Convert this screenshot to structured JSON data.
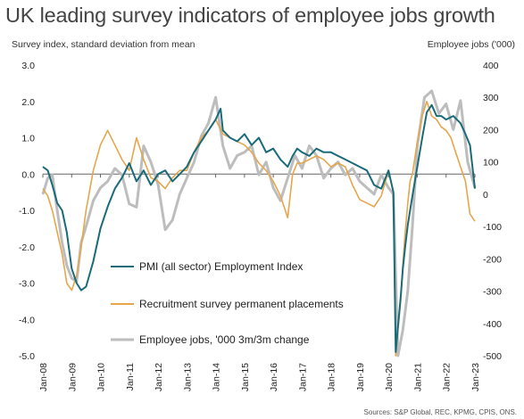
{
  "title": "UK leading survey indicators of employee jobs growth",
  "source": "Sources: S&P Global, REC, KPMG, CPIS, ONS.",
  "colors": {
    "pmi": "#1a6b7a",
    "recruitment": "#e5a64c",
    "jobs": "#bdbdbd",
    "zero_line": "#666666"
  },
  "chart_data": {
    "type": "line",
    "title": "UK leading survey indicators of employee jobs growth",
    "ylabel": "Survey index, standard deviation from mean",
    "ylabel_right": "Employee jobs ('000)",
    "ylim": [
      -5,
      3
    ],
    "ylim_right": [
      -500,
      400
    ],
    "y_ticks": [
      "3.0",
      "2.0",
      "1.0",
      "0.0",
      "-1.0",
      "-2.0",
      "-3.0",
      "-4.0",
      "-5.0"
    ],
    "y_ticks_right": [
      "400",
      "300",
      "200",
      "100",
      "0",
      "-100",
      "-200",
      "-300",
      "-400",
      "-500"
    ],
    "x_ticks": [
      "Jan-08",
      "Jan-09",
      "Jan-10",
      "Jan-11",
      "Jan-12",
      "Jan-13",
      "Jan-14",
      "Jan-15",
      "Jan-16",
      "Jan-17",
      "Jan-18",
      "Jan-19",
      "Jan-20",
      "Jan-21",
      "Jan-22",
      "Jan-23"
    ],
    "xlim": [
      2008.0,
      2023.0
    ],
    "grid": false,
    "legend_position": "bottom-left",
    "series": [
      {
        "name": "PMI (all sector) Employment Index",
        "axis": "left",
        "color": "#1a6b7a",
        "x": [
          2008.0,
          2008.17,
          2008.33,
          2008.5,
          2008.67,
          2008.83,
          2009.0,
          2009.17,
          2009.33,
          2009.5,
          2009.75,
          2010.0,
          2010.25,
          2010.5,
          2010.75,
          2011.0,
          2011.25,
          2011.5,
          2011.75,
          2012.0,
          2012.25,
          2012.5,
          2012.75,
          2013.0,
          2013.25,
          2013.5,
          2013.75,
          2014.0,
          2014.17,
          2014.25,
          2014.5,
          2014.75,
          2015.0,
          2015.25,
          2015.5,
          2015.75,
          2016.0,
          2016.25,
          2016.5,
          2016.67,
          2016.83,
          2017.0,
          2017.25,
          2017.5,
          2017.75,
          2018.0,
          2018.25,
          2018.5,
          2018.75,
          2019.0,
          2019.25,
          2019.5,
          2019.75,
          2020.0,
          2020.17,
          2020.25,
          2020.33,
          2020.42,
          2020.5,
          2020.58,
          2020.67,
          2020.75,
          2020.83,
          2021.0,
          2021.17,
          2021.33,
          2021.5,
          2021.67,
          2021.83,
          2022.0,
          2022.25,
          2022.5,
          2022.67,
          2022.83,
          2023.0
        ],
        "values": [
          0.2,
          0.1,
          -0.3,
          -0.8,
          -1.0,
          -1.6,
          -2.6,
          -3.0,
          -3.2,
          -3.1,
          -2.4,
          -1.5,
          -0.9,
          -0.4,
          -0.1,
          0.3,
          -0.2,
          0.1,
          -0.3,
          0.0,
          0.1,
          -0.2,
          0.0,
          0.2,
          0.6,
          0.9,
          1.2,
          1.5,
          1.8,
          1.2,
          1.0,
          0.9,
          1.1,
          0.8,
          1.0,
          0.6,
          0.7,
          0.4,
          0.2,
          0.5,
          0.7,
          0.6,
          0.5,
          0.7,
          0.6,
          0.6,
          0.5,
          0.4,
          0.3,
          0.2,
          0.1,
          -0.3,
          -0.4,
          0.1,
          -0.5,
          -4.9,
          -4.2,
          -3.4,
          -2.6,
          -2.0,
          -1.4,
          -1.0,
          -0.6,
          0.2,
          1.0,
          1.7,
          1.9,
          1.6,
          1.6,
          1.5,
          1.6,
          1.4,
          1.1,
          0.8,
          -0.4
        ]
      },
      {
        "name": "Recruitment survey permanent placements",
        "axis": "left",
        "color": "#e5a64c",
        "x": [
          2008.0,
          2008.17,
          2008.33,
          2008.5,
          2008.67,
          2008.83,
          2009.0,
          2009.17,
          2009.33,
          2009.5,
          2009.75,
          2010.0,
          2010.25,
          2010.5,
          2010.75,
          2011.0,
          2011.25,
          2011.5,
          2011.75,
          2012.0,
          2012.25,
          2012.5,
          2012.75,
          2013.0,
          2013.25,
          2013.5,
          2013.75,
          2014.0,
          2014.25,
          2014.5,
          2014.75,
          2015.0,
          2015.25,
          2015.5,
          2015.75,
          2016.0,
          2016.25,
          2016.5,
          2016.67,
          2016.83,
          2017.0,
          2017.25,
          2017.5,
          2017.75,
          2018.0,
          2018.25,
          2018.5,
          2018.75,
          2019.0,
          2019.25,
          2019.5,
          2019.75,
          2020.0,
          2020.17,
          2020.25,
          2020.33,
          2020.42,
          2020.5,
          2020.58,
          2020.67,
          2020.75,
          2020.83,
          2021.0,
          2021.17,
          2021.33,
          2021.5,
          2021.67,
          2021.83,
          2022.0,
          2022.17,
          2022.33,
          2022.5,
          2022.67,
          2022.83,
          2023.0
        ],
        "values": [
          -0.4,
          -0.6,
          -1.0,
          -1.6,
          -2.2,
          -3.0,
          -3.2,
          -2.8,
          -2.0,
          -1.0,
          0.1,
          0.8,
          1.2,
          0.8,
          0.4,
          0.1,
          1.0,
          0.4,
          -0.1,
          -0.2,
          -0.4,
          -0.1,
          0.1,
          0.1,
          0.6,
          1.0,
          1.2,
          1.5,
          1.1,
          1.0,
          0.9,
          0.8,
          0.6,
          0.3,
          0.1,
          -0.2,
          -0.6,
          -1.2,
          0.0,
          0.3,
          0.3,
          0.4,
          0.5,
          0.4,
          0.2,
          0.3,
          0.2,
          -0.3,
          -0.7,
          -0.8,
          -0.9,
          -0.6,
          0.1,
          -0.5,
          -5.0,
          -4.3,
          -3.5,
          -2.5,
          -1.6,
          -0.8,
          -0.2,
          0.0,
          0.9,
          1.6,
          2.0,
          1.6,
          1.5,
          1.3,
          1.2,
          1.0,
          0.6,
          0.2,
          -0.2,
          -1.1,
          -1.3
        ]
      },
      {
        "name": "Employee jobs, '000 3m/3m change",
        "axis": "right",
        "color": "#bdbdbd",
        "x": [
          2008.0,
          2008.17,
          2008.33,
          2008.5,
          2008.67,
          2008.83,
          2009.0,
          2009.17,
          2009.33,
          2009.5,
          2009.75,
          2010.0,
          2010.25,
          2010.5,
          2010.75,
          2011.0,
          2011.25,
          2011.5,
          2011.75,
          2012.0,
          2012.25,
          2012.5,
          2012.75,
          2013.0,
          2013.25,
          2013.5,
          2013.75,
          2014.0,
          2014.25,
          2014.5,
          2014.75,
          2015.0,
          2015.25,
          2015.5,
          2015.75,
          2016.0,
          2016.25,
          2016.5,
          2016.75,
          2017.0,
          2017.25,
          2017.5,
          2017.75,
          2018.0,
          2018.25,
          2018.5,
          2018.75,
          2019.0,
          2019.25,
          2019.5,
          2019.75,
          2020.0,
          2020.17,
          2020.33,
          2020.5,
          2020.67,
          2020.83,
          2021.0,
          2021.25,
          2021.5,
          2021.75,
          2022.0,
          2022.25,
          2022.5,
          2022.75,
          2023.0
        ],
        "values": [
          0,
          50,
          60,
          -50,
          -150,
          -220,
          -260,
          -270,
          -150,
          -100,
          -20,
          20,
          40,
          80,
          60,
          -30,
          -40,
          150,
          100,
          30,
          -110,
          -80,
          0,
          50,
          100,
          180,
          220,
          300,
          150,
          80,
          120,
          130,
          150,
          60,
          100,
          20,
          -20,
          50,
          120,
          80,
          150,
          120,
          50,
          80,
          100,
          60,
          80,
          40,
          20,
          0,
          60,
          20,
          0,
          -500,
          -420,
          -300,
          -100,
          150,
          300,
          320,
          250,
          280,
          200,
          290,
          100,
          20
        ]
      }
    ]
  }
}
